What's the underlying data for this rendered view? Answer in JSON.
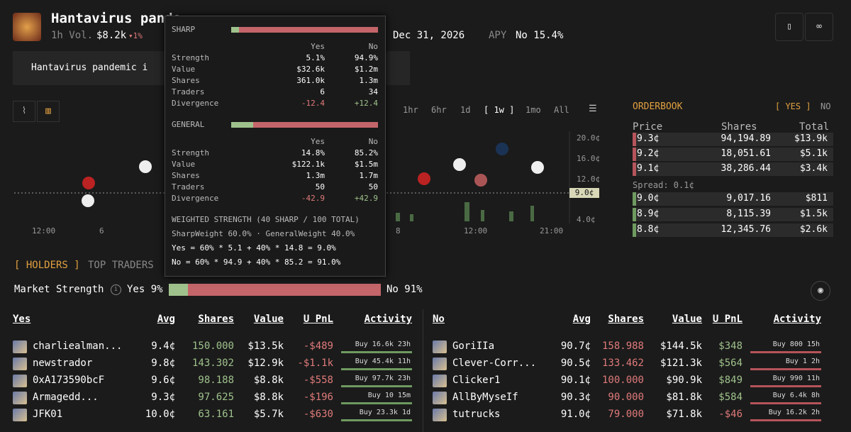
{
  "header": {
    "title": "Hantavirus pande",
    "vol_label": "1h Vol.",
    "vol": "$8.2k",
    "vol_change": "▾1%",
    "end_date": "Dec 31, 2026",
    "apy_label": "APY",
    "apy": "No 15.4%",
    "description": "Hantavirus pandemic i"
  },
  "chart": {
    "timeframes": [
      "1hr",
      "6hr",
      "1d",
      "[ 1w ]",
      "1mo",
      "All"
    ],
    "y_labels": [
      "20.0¢",
      "16.0¢",
      "12.0¢",
      "4.0¢"
    ],
    "current_price": "9.0¢",
    "x_labels": [
      "12:00",
      "6",
      "8",
      "12:00",
      "21:00"
    ]
  },
  "orderbook": {
    "title": "ORDERBOOK",
    "tabs": [
      "[ YES ]",
      "NO"
    ],
    "columns": [
      "Price",
      "Shares",
      "Total"
    ],
    "asks": [
      [
        "9.3¢",
        "94,194.89",
        "$13.9k"
      ],
      [
        "9.2¢",
        "18,051.61",
        "$5.1k"
      ],
      [
        "9.1¢",
        "38,286.44",
        "$3.4k"
      ]
    ],
    "spread": "Spread: 0.1¢",
    "bids": [
      [
        "9.0¢",
        "9,017.16",
        "$811"
      ],
      [
        "8.9¢",
        "8,115.39",
        "$1.5k"
      ],
      [
        "8.8¢",
        "12,345.76",
        "$2.6k"
      ]
    ]
  },
  "tooltip": {
    "columns": [
      "Yes",
      "No"
    ],
    "sections": [
      {
        "title": "SHARP",
        "rows": [
          [
            "Strength",
            "5.1%",
            "94.9%"
          ],
          [
            "Value",
            "$32.6k",
            "$1.2m"
          ],
          [
            "Shares",
            "361.0k",
            "1.3m"
          ],
          [
            "Traders",
            "6",
            "34"
          ],
          [
            "Divergence",
            "-12.4",
            "+12.4"
          ]
        ]
      },
      {
        "title": "GENERAL",
        "rows": [
          [
            "Strength",
            "14.8%",
            "85.2%"
          ],
          [
            "Value",
            "$122.1k",
            "$1.5m"
          ],
          [
            "Shares",
            "1.3m",
            "1.7m"
          ],
          [
            "Traders",
            "50",
            "50"
          ],
          [
            "Divergence",
            "-42.9",
            "+42.9"
          ]
        ]
      }
    ],
    "weighted_title": "WEIGHTED STRENGTH (40 SHARP / 100 TOTAL)",
    "weights": "SharpWeight 60.0% · GeneralWeight 40.0%",
    "formulas": [
      "Yes = 60% * 5.1 + 40% * 14.8 = 9.0%",
      "No = 60% * 94.9 + 40% * 85.2 = 91.0%"
    ]
  },
  "holders": {
    "tabs": [
      "[ HOLDERS ]",
      "TOP TRADERS"
    ],
    "strength_label": "Market Strength",
    "yes_strength": "Yes 9%",
    "no_strength": "No 91%",
    "columns": [
      "Avg",
      "Shares",
      "Value",
      "U PnL",
      "Activity"
    ],
    "tables": [
      {
        "side": "Yes",
        "rows": [
          [
            "charliealman...",
            "9.4¢",
            "150.000",
            "$13.5k",
            "-$489",
            "Buy 16.6k 23h"
          ],
          [
            "newstrador",
            "9.8¢",
            "143.302",
            "$12.9k",
            "-$1.1k",
            "Buy 45.4k 11h"
          ],
          [
            "0xA173590bcF",
            "9.6¢",
            "98.188",
            "$8.8k",
            "-$558",
            "Buy 97.7k 23h"
          ],
          [
            "Armagedd...",
            "9.3¢",
            "97.625",
            "$8.8k",
            "-$196",
            "Buy 10 15m"
          ],
          [
            "JFK01",
            "10.0¢",
            "63.161",
            "$5.7k",
            "-$630",
            "Buy 23.3k 1d"
          ]
        ]
      },
      {
        "side": "No",
        "rows": [
          [
            "GoriIIa",
            "90.7¢",
            "158.988",
            "$144.5k",
            "$348",
            "Buy 800 15h"
          ],
          [
            "Clever-Corr...",
            "90.5¢",
            "133.462",
            "$121.3k",
            "$564",
            "Buy 1 2h"
          ],
          [
            "Clicker1",
            "90.1¢",
            "100.000",
            "$90.9k",
            "$849",
            "Buy 990 11h"
          ],
          [
            "AllByMyseIf",
            "90.3¢",
            "90.000",
            "$81.8k",
            "$584",
            "Buy 6.4k 8h"
          ],
          [
            "tutrucks",
            "91.0¢",
            "79.000",
            "$71.8k",
            "-$46",
            "Buy 16.2k 2h"
          ]
        ]
      }
    ]
  }
}
